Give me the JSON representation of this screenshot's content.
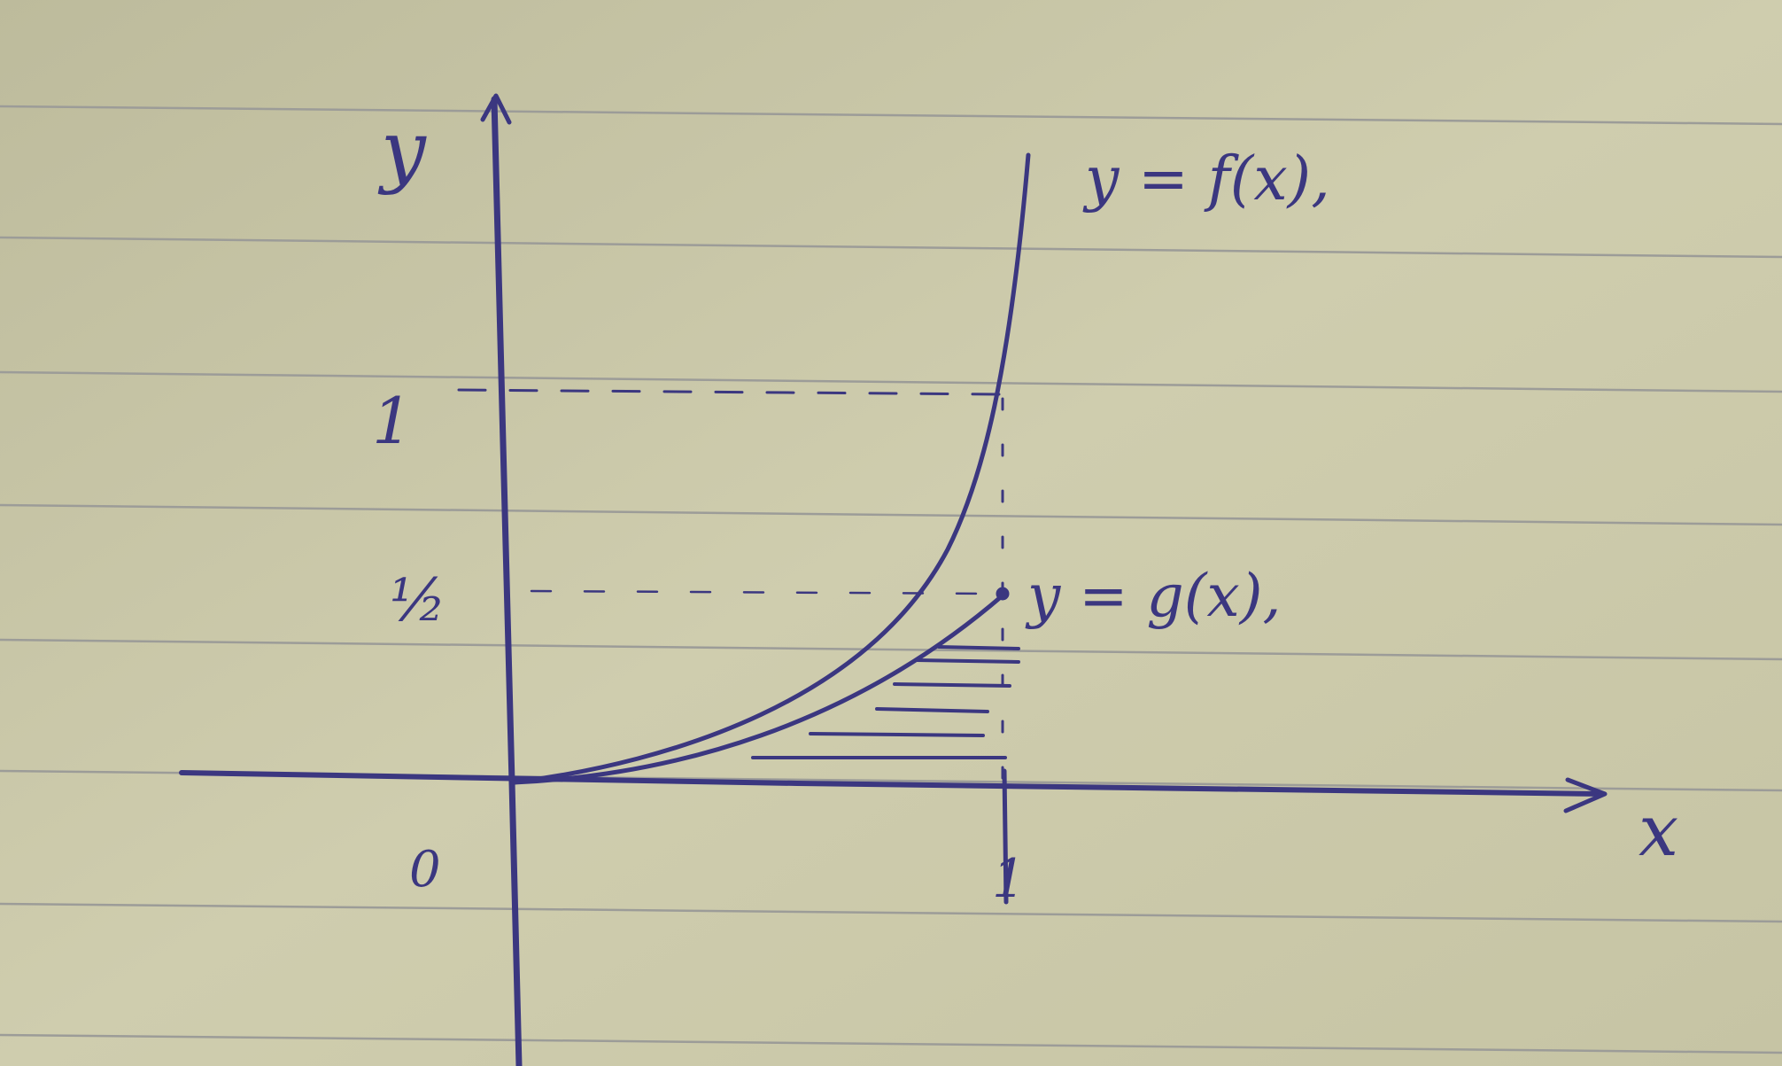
{
  "colors": {
    "paper": "#c8c6a6",
    "ruling": "#9a9a96",
    "ink": "#3b3780"
  },
  "axes": {
    "x_label": "x",
    "y_label": "y",
    "origin_label": "0"
  },
  "ticks": {
    "x_one": "1",
    "y_one": "1",
    "y_half": "½"
  },
  "curves": {
    "f_label": "y = f(x),",
    "g_label": "y = g(x),"
  },
  "shaded_region": "region between y = g(x) and the x-axis for 0 ≤ x ≤ 1"
}
